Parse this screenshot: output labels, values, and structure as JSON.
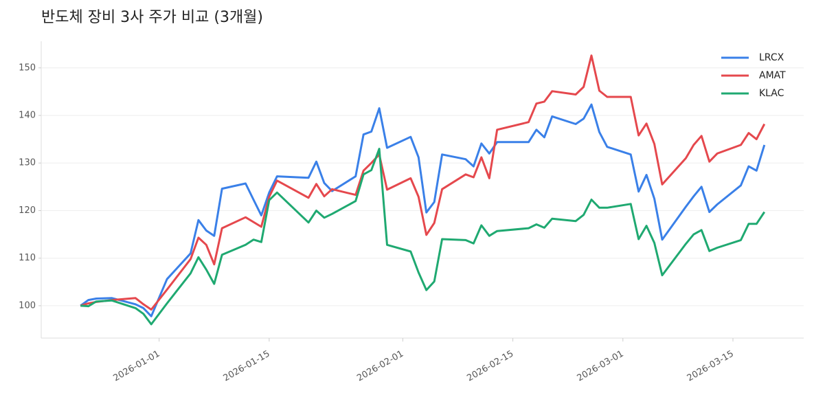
{
  "chart_data": {
    "type": "line",
    "title": "반도체 장비 3사 주가 비교 (3개월)",
    "x": [
      "2025-12-22",
      "2025-12-23",
      "2025-12-24",
      "2025-12-26",
      "2025-12-29",
      "2025-12-30",
      "2025-12-31",
      "2026-01-02",
      "2026-01-05",
      "2026-01-06",
      "2026-01-07",
      "2026-01-08",
      "2026-01-09",
      "2026-01-12",
      "2026-01-13",
      "2026-01-14",
      "2026-01-15",
      "2026-01-16",
      "2026-01-20",
      "2026-01-21",
      "2026-01-22",
      "2026-01-23",
      "2026-01-26",
      "2026-01-27",
      "2026-01-28",
      "2026-01-29",
      "2026-01-30",
      "2026-02-02",
      "2026-02-03",
      "2026-02-04",
      "2026-02-05",
      "2026-02-06",
      "2026-02-09",
      "2026-02-10",
      "2026-02-11",
      "2026-02-12",
      "2026-02-13",
      "2026-02-17",
      "2026-02-18",
      "2026-02-19",
      "2026-02-20",
      "2026-02-23",
      "2026-02-24",
      "2026-02-25",
      "2026-02-26",
      "2026-02-27",
      "2026-03-02",
      "2026-03-03",
      "2026-03-04",
      "2026-03-05",
      "2026-03-06",
      "2026-03-09",
      "2026-03-10",
      "2026-03-11",
      "2026-03-12",
      "2026-03-13",
      "2026-03-16",
      "2026-03-17",
      "2026-03-18",
      "2026-03-19"
    ],
    "series": [
      {
        "name": "LRCX",
        "color": "#3a80e8",
        "values": [
          100,
          101.2,
          101.5,
          101.6,
          100.3,
          99.5,
          97.8,
          105.6,
          111,
          118,
          115.8,
          114.7,
          124.6,
          125.7,
          122.3,
          119,
          123.8,
          127.2,
          126.9,
          130.3,
          125.8,
          124.1,
          127.2,
          136,
          136.6,
          141.5,
          133.2,
          135.5,
          131.2,
          119.6,
          121.8,
          131.8,
          130.8,
          129.3,
          134.1,
          132,
          134.4,
          134.4,
          137,
          135.4,
          139.8,
          138.2,
          139.3,
          142.3,
          136.5,
          133.4,
          131.8,
          124,
          127.5,
          122.5,
          113.9,
          120.8,
          123,
          125,
          119.7,
          121.3,
          125.3,
          129.3,
          128.4,
          133.8
        ]
      },
      {
        "name": "AMAT",
        "color": "#e5484d",
        "values": [
          100,
          100.5,
          100.8,
          101.2,
          101.6,
          100.3,
          99.2,
          103.4,
          109.8,
          114.3,
          112.8,
          108.7,
          116.3,
          118.6,
          117.6,
          116.6,
          122.9,
          126.3,
          122.7,
          125.6,
          123,
          124.5,
          123.3,
          128.4,
          130,
          131.8,
          124.4,
          126.8,
          122.9,
          114.9,
          117.4,
          124.5,
          127.6,
          127,
          131.2,
          126.8,
          137,
          138.6,
          142.5,
          142.9,
          145.1,
          144.4,
          146,
          152.6,
          145.2,
          143.9,
          143.9,
          135.8,
          138.3,
          134,
          125.5,
          131,
          133.8,
          135.7,
          130.3,
          132,
          133.8,
          136.3,
          135,
          138.2
        ]
      },
      {
        "name": "KLAC",
        "color": "#1fa971",
        "values": [
          100,
          99.9,
          100.9,
          101.1,
          99.5,
          98.3,
          96.1,
          100.5,
          106.8,
          110.2,
          107.6,
          104.6,
          110.7,
          112.8,
          113.9,
          113.4,
          122.2,
          123.8,
          117.5,
          120,
          118.5,
          119.3,
          122,
          127.6,
          128.5,
          133,
          112.8,
          111.4,
          107,
          103.3,
          105.1,
          114,
          113.8,
          113.1,
          116.9,
          114.7,
          115.7,
          116.3,
          117.1,
          116.4,
          118.3,
          117.8,
          119.1,
          122.3,
          120.6,
          120.6,
          121.4,
          114,
          116.8,
          113.2,
          106.4,
          113,
          115,
          115.9,
          111.5,
          112.2,
          113.8,
          117.2,
          117.2,
          119.7
        ]
      }
    ],
    "xlim": [
      "2025-12-17",
      "2026-03-24"
    ],
    "xticks": [
      "2026-01-01",
      "2026-01-15",
      "2026-02-01",
      "2026-02-15",
      "2026-03-01",
      "2026-03-15"
    ],
    "ylim": [
      93.2,
      155.6
    ],
    "yticks": [
      100,
      110,
      120,
      130,
      140,
      150
    ],
    "grid": true,
    "legend": "upper right"
  }
}
